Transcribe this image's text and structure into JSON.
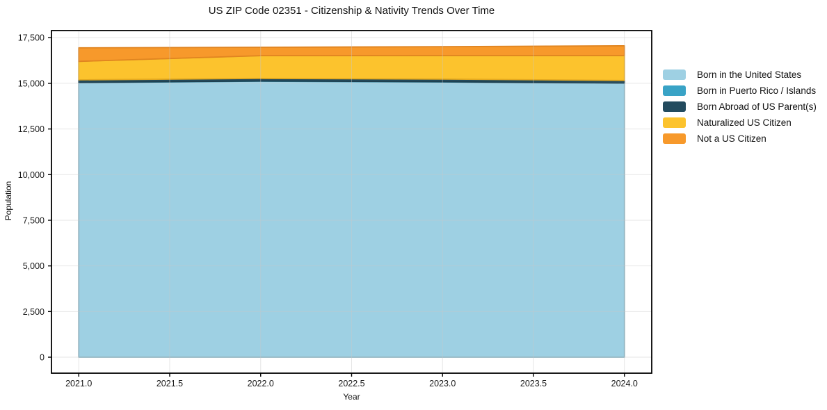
{
  "title": "US ZIP Code 02351 - Citizenship & Nativity Trends Over Time",
  "chart_data": {
    "type": "area",
    "stacked": true,
    "title": "US ZIP Code 02351 - Citizenship & Nativity Trends Over Time",
    "xlabel": "Year",
    "ylabel": "Population",
    "x": [
      2021,
      2022,
      2023,
      2024
    ],
    "series": [
      {
        "name": "Born in the United States",
        "values": [
          15040,
          15115,
          15075,
          15000
        ],
        "fill": "#9ED0E3",
        "edge": "#86B1C1"
      },
      {
        "name": "Born in Puerto Rico / Islands",
        "values": [
          12,
          12,
          12,
          12
        ],
        "fill": "#39A3C6",
        "edge": "#308BA8"
      },
      {
        "name": "Born Abroad of US Parent(s)",
        "values": [
          140,
          140,
          145,
          145
        ],
        "fill": "#234B5E",
        "edge": "#1E4050"
      },
      {
        "name": "Naturalized US Citizen",
        "values": [
          1010,
          1250,
          1290,
          1365
        ],
        "fill": "#FCC32D",
        "edge": "#E3A81F"
      },
      {
        "name": "Not a US Citizen",
        "values": [
          745,
          460,
          490,
          535
        ],
        "fill": "#F7992B",
        "edge": "#E08420"
      }
    ],
    "xlim": [
      2020.85,
      2024.15
    ],
    "ylim": [
      -875,
      17890
    ],
    "xticks": [
      2021.0,
      2021.5,
      2022.0,
      2022.5,
      2023.0,
      2023.5,
      2024.0
    ],
    "xtick_labels": [
      "2021.0",
      "2021.5",
      "2022.0",
      "2022.5",
      "2023.0",
      "2023.5",
      "2024.0"
    ],
    "yticks": [
      0,
      2500,
      5000,
      7500,
      10000,
      12500,
      15000,
      17500
    ],
    "ytick_labels": [
      "0",
      "2,500",
      "5,000",
      "7,500",
      "10,000",
      "12,500",
      "15,000",
      "17,500"
    ],
    "grid": true,
    "legend_position": "right",
    "frame_color": "#000000",
    "grid_color": "#c8c8c8",
    "tick_label_color": "#191919"
  }
}
